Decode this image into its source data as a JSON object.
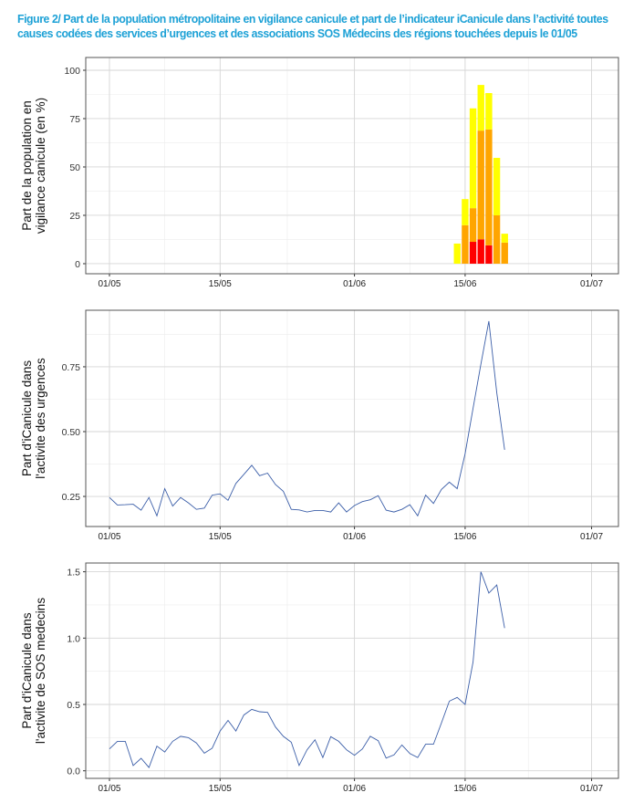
{
  "title": {
    "line1": "Figure 2/ Part de la population métropolitaine en vigilance canicule et part de l’indicateur iCanicule dans l’activité toutes",
    "line2": "causes codées des services d’urgences et des associations SOS Médecins des régions touchées depuis le 01/05"
  },
  "colors": {
    "yellow": "#ffff00",
    "orange": "#ffa500",
    "red": "#ff0000",
    "line": "#3b5ea8",
    "title": "#1da1d6"
  },
  "chart_data": [
    {
      "type": "bar",
      "stacked": true,
      "ylabel_line1": "Part de la population en",
      "ylabel_line2": "vigilance canicule (en %)",
      "ylim": [
        -5.2,
        106.6
      ],
      "yticks": [
        0,
        25,
        50,
        75,
        100
      ],
      "x_origin": "01/05",
      "x_range_days": [
        -3,
        64.4
      ],
      "xticks": [
        {
          "day": 0,
          "label": "01/05"
        },
        {
          "day": 14,
          "label": "15/05"
        },
        {
          "day": 31,
          "label": "01/06"
        },
        {
          "day": 45,
          "label": "15/06"
        },
        {
          "day": 61,
          "label": "01/07"
        }
      ],
      "days": [
        44,
        45,
        46,
        47,
        48,
        49,
        50
      ],
      "series": [
        {
          "name": "rouge",
          "color": "red",
          "values": [
            0,
            0,
            11.3,
            12.6,
            9.5,
            0,
            0
          ]
        },
        {
          "name": "orange",
          "color": "orange",
          "values": [
            0,
            19.9,
            17.4,
            56.2,
            59.9,
            25,
            10.9
          ]
        },
        {
          "name": "jaune",
          "color": "yellow",
          "values": [
            10.4,
            13.5,
            51.6,
            23.6,
            18.8,
            29.7,
            4.6
          ]
        }
      ]
    },
    {
      "type": "line",
      "ylabel_line1": "Part d'iCanicule dans",
      "ylabel_line2": "l'activite des urgences",
      "ylim": [
        0.134,
        0.968
      ],
      "yticks": [
        0.25,
        0.5,
        0.75
      ],
      "ytick_labels": [
        "0.25",
        "0.50",
        "0.75"
      ],
      "x_range_days": [
        -3,
        64.4
      ],
      "xticks": [
        {
          "day": 0,
          "label": "01/05"
        },
        {
          "day": 14,
          "label": "15/05"
        },
        {
          "day": 31,
          "label": "01/06"
        },
        {
          "day": 45,
          "label": "15/06"
        },
        {
          "day": 61,
          "label": "01/07"
        }
      ],
      "values": [
        0.246,
        0.217,
        0.218,
        0.22,
        0.197,
        0.246,
        0.175,
        0.28,
        0.213,
        0.246,
        0.225,
        0.2,
        0.205,
        0.255,
        0.26,
        0.235,
        0.3,
        0.335,
        0.37,
        0.33,
        0.34,
        0.296,
        0.27,
        0.2,
        0.198,
        0.19,
        0.196,
        0.196,
        0.19,
        0.225,
        0.19,
        0.215,
        0.23,
        0.237,
        0.253,
        0.197,
        0.19,
        0.2,
        0.218,
        0.175,
        0.255,
        0.223,
        0.277,
        0.305,
        0.28,
        0.415,
        0.59,
        0.76,
        0.926,
        0.65,
        0.43
      ]
    },
    {
      "type": "line",
      "ylabel_line1": "Part d'iCanicule dans",
      "ylabel_line2": "l'activite de SOS medecins",
      "ylim": [
        -0.057,
        1.566
      ],
      "yticks": [
        0,
        0.5,
        1.0,
        1.5
      ],
      "ytick_labels": [
        "0.0",
        "0.5",
        "1.0",
        "1.5"
      ],
      "x_range_days": [
        -3,
        64.4
      ],
      "xticks": [
        {
          "day": 0,
          "label": "01/05"
        },
        {
          "day": 14,
          "label": "15/05"
        },
        {
          "day": 31,
          "label": "01/06"
        },
        {
          "day": 45,
          "label": "15/06"
        },
        {
          "day": 61,
          "label": "01/07"
        }
      ],
      "values": [
        0.165,
        0.222,
        0.222,
        0.04,
        0.094,
        0.025,
        0.186,
        0.142,
        0.222,
        0.26,
        0.25,
        0.21,
        0.133,
        0.17,
        0.3,
        0.38,
        0.3,
        0.42,
        0.463,
        0.445,
        0.44,
        0.33,
        0.26,
        0.215,
        0.04,
        0.158,
        0.234,
        0.1,
        0.257,
        0.222,
        0.158,
        0.117,
        0.165,
        0.26,
        0.227,
        0.096,
        0.12,
        0.195,
        0.13,
        0.1,
        0.2,
        0.2,
        0.36,
        0.525,
        0.553,
        0.5,
        0.82,
        1.5,
        1.34,
        1.4,
        1.076
      ]
    }
  ]
}
